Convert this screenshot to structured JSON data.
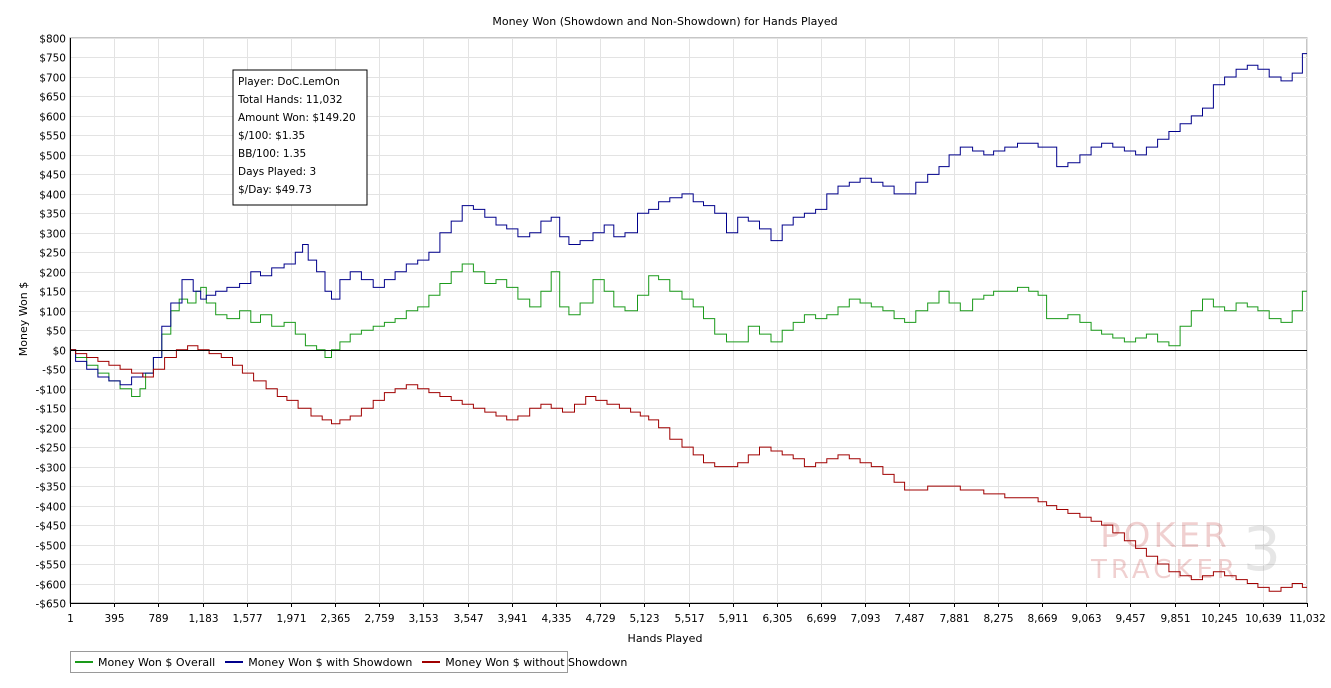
{
  "chart_data": {
    "type": "line",
    "title": "Money Won (Showdown and Non-Showdown) for Hands Played",
    "xlabel": "Hands Played",
    "ylabel": "Money Won $",
    "xlim": [
      1,
      11032
    ],
    "ylim": [
      -650,
      800
    ],
    "x_ticks": [
      1,
      395,
      789,
      1183,
      1577,
      1971,
      2365,
      2759,
      3153,
      3547,
      3941,
      4335,
      4729,
      5123,
      5517,
      5911,
      6305,
      6699,
      7093,
      7487,
      7881,
      8275,
      8669,
      9063,
      9457,
      9851,
      10245,
      10639,
      11032
    ],
    "x_tick_labels": [
      "1",
      "395",
      "789",
      "1,183",
      "1,577",
      "1,971",
      "2,365",
      "2,759",
      "3,153",
      "3,547",
      "3,941",
      "4,335",
      "4,729",
      "5,123",
      "5,517",
      "5,911",
      "6,305",
      "6,699",
      "7,093",
      "7,487",
      "7,881",
      "8,275",
      "8,669",
      "9,063",
      "9,457",
      "9,851",
      "10,245",
      "10,639",
      "11,032"
    ],
    "y_ticks": [
      800,
      750,
      700,
      650,
      600,
      550,
      500,
      450,
      400,
      350,
      300,
      250,
      200,
      150,
      100,
      50,
      0,
      -50,
      -100,
      -150,
      -200,
      -250,
      -300,
      -350,
      -400,
      -450,
      -500,
      -550,
      -600,
      -650
    ],
    "y_tick_labels": [
      "$800",
      "$750",
      "$700",
      "$650",
      "$600",
      "$550",
      "$500",
      "$450",
      "$400",
      "$350",
      "$300",
      "$250",
      "$200",
      "$150",
      "$100",
      "$50",
      "$0",
      "-$50",
      "-$100",
      "-$150",
      "-$200",
      "-$250",
      "-$300",
      "-$350",
      "-$400",
      "-$450",
      "-$500",
      "-$550",
      "-$600",
      "-$650"
    ],
    "grid": true,
    "legend_position": "bottom-left",
    "series": [
      {
        "name": "Money Won $ Overall",
        "color": "#1a9a1a",
        "x": [
          1,
          100,
          200,
          300,
          395,
          500,
          600,
          650,
          700,
          789,
          850,
          950,
          1000,
          1100,
          1150,
          1183,
          1250,
          1350,
          1450,
          1577,
          1650,
          1750,
          1850,
          1971,
          2050,
          2150,
          2250,
          2300,
          2365,
          2450,
          2550,
          2650,
          2759,
          2850,
          2950,
          3050,
          3153,
          3250,
          3350,
          3450,
          3547,
          3650,
          3750,
          3850,
          3941,
          4050,
          4150,
          4250,
          4335,
          4400,
          4500,
          4600,
          4729,
          4800,
          4900,
          5000,
          5123,
          5200,
          5300,
          5400,
          5517,
          5600,
          5700,
          5800,
          5911,
          6000,
          6100,
          6200,
          6305,
          6400,
          6500,
          6600,
          6699,
          6800,
          6900,
          7000,
          7093,
          7200,
          7300,
          7400,
          7487,
          7600,
          7700,
          7800,
          7881,
          8000,
          8100,
          8200,
          8275,
          8400,
          8500,
          8600,
          8669,
          8750,
          8850,
          8950,
          9063,
          9150,
          9250,
          9350,
          9457,
          9550,
          9650,
          9750,
          9851,
          9950,
          10050,
          10150,
          10245,
          10350,
          10450,
          10550,
          10639,
          10750,
          10850,
          10950,
          11032
        ],
        "values": [
          0,
          -20,
          -40,
          -60,
          -80,
          -100,
          -120,
          -100,
          -60,
          -20,
          40,
          100,
          130,
          120,
          150,
          160,
          120,
          90,
          80,
          100,
          70,
          90,
          60,
          70,
          40,
          10,
          0,
          -20,
          0,
          20,
          40,
          50,
          60,
          70,
          80,
          100,
          110,
          140,
          170,
          200,
          220,
          200,
          170,
          180,
          160,
          130,
          110,
          150,
          200,
          110,
          90,
          120,
          180,
          150,
          110,
          100,
          140,
          190,
          180,
          150,
          130,
          110,
          80,
          40,
          20,
          20,
          60,
          40,
          20,
          50,
          70,
          90,
          80,
          90,
          110,
          130,
          120,
          110,
          100,
          80,
          70,
          100,
          120,
          150,
          120,
          100,
          130,
          140,
          150,
          150,
          160,
          150,
          140,
          80,
          80,
          90,
          70,
          50,
          40,
          30,
          20,
          30,
          40,
          20,
          10,
          60,
          100,
          130,
          110,
          100,
          120,
          110,
          100,
          80,
          70,
          100,
          150
        ]
      },
      {
        "name": "Money Won $ with Showdown",
        "color": "#00008b",
        "x": [
          1,
          100,
          200,
          300,
          395,
          500,
          600,
          700,
          789,
          850,
          950,
          1050,
          1150,
          1183,
          1250,
          1350,
          1450,
          1577,
          1650,
          1750,
          1850,
          1971,
          2050,
          2100,
          2150,
          2250,
          2300,
          2365,
          2450,
          2550,
          2650,
          2759,
          2850,
          2950,
          3050,
          3153,
          3250,
          3350,
          3450,
          3547,
          3650,
          3750,
          3850,
          3941,
          4050,
          4150,
          4250,
          4335,
          4400,
          4500,
          4600,
          4729,
          4800,
          4900,
          5000,
          5123,
          5200,
          5300,
          5400,
          5517,
          5600,
          5700,
          5800,
          5911,
          6000,
          6100,
          6200,
          6305,
          6400,
          6500,
          6600,
          6699,
          6800,
          6900,
          7000,
          7093,
          7200,
          7300,
          7400,
          7487,
          7600,
          7700,
          7800,
          7881,
          8000,
          8100,
          8200,
          8275,
          8400,
          8500,
          8600,
          8669,
          8750,
          8850,
          8950,
          9063,
          9150,
          9250,
          9350,
          9457,
          9550,
          9650,
          9750,
          9851,
          9950,
          10050,
          10150,
          10245,
          10350,
          10450,
          10550,
          10639,
          10750,
          10850,
          10950,
          11032
        ],
        "values": [
          0,
          -30,
          -50,
          -70,
          -80,
          -90,
          -70,
          -60,
          -20,
          60,
          120,
          180,
          150,
          130,
          140,
          150,
          160,
          170,
          200,
          190,
          210,
          220,
          250,
          270,
          230,
          200,
          150,
          130,
          180,
          200,
          180,
          160,
          180,
          200,
          220,
          230,
          250,
          300,
          330,
          370,
          360,
          340,
          320,
          310,
          290,
          300,
          330,
          340,
          290,
          270,
          280,
          300,
          320,
          290,
          300,
          350,
          360,
          380,
          390,
          400,
          380,
          370,
          350,
          300,
          340,
          330,
          310,
          280,
          320,
          340,
          350,
          360,
          400,
          420,
          430,
          440,
          430,
          420,
          400,
          400,
          430,
          450,
          470,
          500,
          520,
          510,
          500,
          510,
          520,
          530,
          530,
          520,
          520,
          470,
          480,
          500,
          520,
          530,
          520,
          510,
          500,
          520,
          540,
          560,
          580,
          600,
          620,
          680,
          700,
          720,
          730,
          720,
          700,
          690,
          710,
          760
        ]
      },
      {
        "name": "Money Won $ without Showdown",
        "color": "#a00000",
        "x": [
          1,
          100,
          200,
          300,
          395,
          500,
          600,
          700,
          789,
          900,
          1000,
          1100,
          1183,
          1300,
          1400,
          1500,
          1577,
          1700,
          1800,
          1900,
          1971,
          2100,
          2200,
          2300,
          2365,
          2450,
          2550,
          2650,
          2759,
          2850,
          2950,
          3050,
          3153,
          3250,
          3350,
          3450,
          3547,
          3650,
          3750,
          3850,
          3941,
          4050,
          4150,
          4250,
          4335,
          4450,
          4550,
          4650,
          4729,
          4850,
          4950,
          5050,
          5123,
          5200,
          5300,
          5400,
          5517,
          5600,
          5700,
          5800,
          5911,
          6000,
          6100,
          6200,
          6305,
          6400,
          6500,
          6600,
          6699,
          6800,
          6900,
          7000,
          7093,
          7200,
          7300,
          7400,
          7487,
          7600,
          7700,
          7800,
          7881,
          8000,
          8100,
          8200,
          8275,
          8400,
          8500,
          8600,
          8669,
          8750,
          8850,
          8950,
          9063,
          9150,
          9250,
          9350,
          9457,
          9550,
          9650,
          9750,
          9851,
          9950,
          10050,
          10150,
          10245,
          10350,
          10450,
          10550,
          10639,
          10750,
          10850,
          10950,
          11032
        ],
        "values": [
          0,
          -10,
          -20,
          -30,
          -40,
          -50,
          -60,
          -70,
          -50,
          -20,
          0,
          10,
          0,
          -10,
          -20,
          -40,
          -60,
          -80,
          -100,
          -120,
          -130,
          -150,
          -170,
          -180,
          -190,
          -180,
          -170,
          -150,
          -130,
          -110,
          -100,
          -90,
          -100,
          -110,
          -120,
          -130,
          -140,
          -150,
          -160,
          -170,
          -180,
          -170,
          -150,
          -140,
          -150,
          -160,
          -140,
          -120,
          -130,
          -140,
          -150,
          -160,
          -170,
          -180,
          -200,
          -230,
          -250,
          -270,
          -290,
          -300,
          -300,
          -290,
          -270,
          -250,
          -260,
          -270,
          -280,
          -300,
          -290,
          -280,
          -270,
          -280,
          -290,
          -300,
          -320,
          -340,
          -360,
          -360,
          -350,
          -350,
          -350,
          -360,
          -360,
          -370,
          -370,
          -380,
          -380,
          -380,
          -390,
          -400,
          -410,
          -420,
          -430,
          -440,
          -450,
          -470,
          -490,
          -510,
          -530,
          -550,
          -570,
          -580,
          -590,
          -580,
          -570,
          -580,
          -590,
          -600,
          -610,
          -620,
          -610,
          -600,
          -610
        ]
      }
    ]
  },
  "stats_box": {
    "player": "Player: DoC.LemOn",
    "total_hands": "Total Hands: 11,032",
    "amount_won": "Amount Won: $149.20",
    "per100": "$/100: $1.35",
    "bb100": "BB/100: 1.35",
    "days_played": "Days Played: 3",
    "per_day": "$/Day: $49.73"
  },
  "watermark": {
    "line1": "POKER",
    "line2": "TRACKER",
    "numeral": "3"
  },
  "legend": {
    "overall": "Money Won $ Overall",
    "showdown": "Money Won $ with Showdown",
    "non_showdown": "Money Won $ without Showdown",
    "overall_color": "#1a9a1a",
    "showdown_color": "#00008b",
    "non_showdown_color": "#a00000"
  }
}
